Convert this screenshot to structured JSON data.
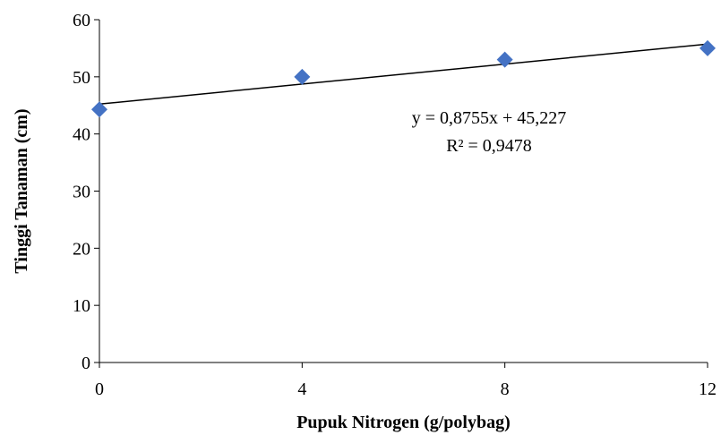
{
  "chart_data": {
    "type": "scatter",
    "xlabel": "Pupuk Nitrogen (g/polybag)",
    "ylabel": "Tinggi Tanaman (cm)",
    "xlim": [
      0,
      12
    ],
    "ylim": [
      0,
      60
    ],
    "x_ticks": [
      0,
      4,
      8,
      12
    ],
    "y_ticks": [
      0,
      10,
      20,
      30,
      40,
      50,
      60
    ],
    "grid": false,
    "legend": "none",
    "series": [
      {
        "x": [
          0,
          4,
          8,
          12
        ],
        "y": [
          44.3,
          50.0,
          53.0,
          55.0
        ],
        "marker": "diamond",
        "color": "#4472C4"
      }
    ],
    "trendline": {
      "type": "linear",
      "slope": 0.8755,
      "intercept": 45.227,
      "color": "#000000"
    },
    "annotations": {
      "equation": "y = 0,8755x + 45,227",
      "r_squared": "R² = 0,9478"
    }
  }
}
